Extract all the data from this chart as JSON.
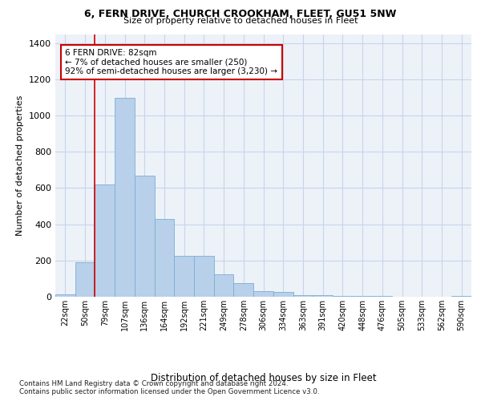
{
  "title": "6, FERN DRIVE, CHURCH CROOKHAM, FLEET, GU51 5NW",
  "subtitle": "Size of property relative to detached houses in Fleet",
  "xlabel": "Distribution of detached houses by size in Fleet",
  "ylabel": "Number of detached properties",
  "bar_color": "#b8d0ea",
  "bar_edge_color": "#7aaed4",
  "grid_color": "#c8d4e8",
  "background_color": "#edf2f9",
  "categories": [
    "22sqm",
    "50sqm",
    "79sqm",
    "107sqm",
    "136sqm",
    "164sqm",
    "192sqm",
    "221sqm",
    "249sqm",
    "278sqm",
    "306sqm",
    "334sqm",
    "363sqm",
    "391sqm",
    "420sqm",
    "448sqm",
    "476sqm",
    "505sqm",
    "533sqm",
    "562sqm",
    "590sqm"
  ],
  "values": [
    15,
    190,
    620,
    1100,
    670,
    430,
    225,
    225,
    125,
    75,
    30,
    28,
    8,
    8,
    5,
    3,
    3,
    2,
    2,
    1,
    5
  ],
  "vline_index": 2,
  "vline_color": "#cc0000",
  "annotation_text": "6 FERN DRIVE: 82sqm\n← 7% of detached houses are smaller (250)\n92% of semi-detached houses are larger (3,230) →",
  "ylim": [
    0,
    1450
  ],
  "yticks": [
    0,
    200,
    400,
    600,
    800,
    1000,
    1200,
    1400
  ],
  "footer_line1": "Contains HM Land Registry data © Crown copyright and database right 2024.",
  "footer_line2": "Contains public sector information licensed under the Open Government Licence v3.0."
}
